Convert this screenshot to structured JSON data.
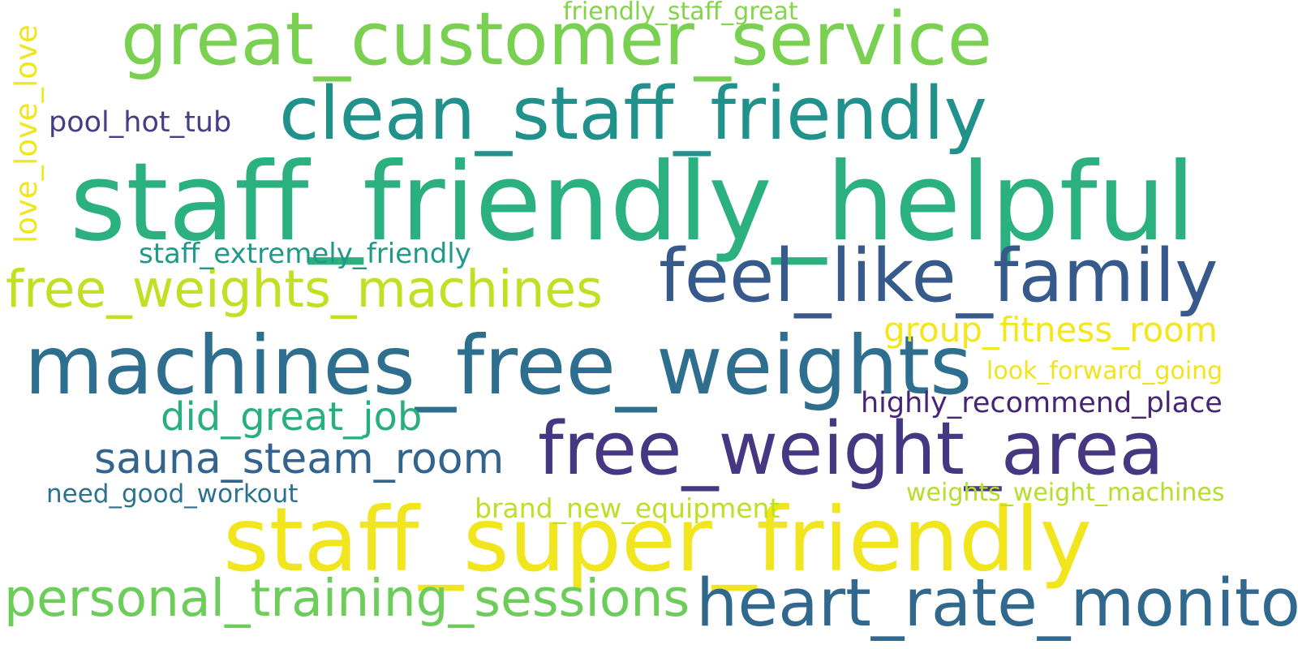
{
  "words": [
    {
      "text": "staff_friendly_helpful",
      "color": "#2bb07f"
    },
    {
      "text": "staff_super_friendly",
      "color": "#f1e51d"
    },
    {
      "text": "machines_free_weights",
      "color": "#2e6e8e"
    },
    {
      "text": "great_customer_service",
      "color": "#7ad151"
    },
    {
      "text": "clean_staff_friendly",
      "color": "#21918c"
    },
    {
      "text": "feel_like_family",
      "color": "#375a8c"
    },
    {
      "text": "free_weight_area",
      "color": "#453781"
    },
    {
      "text": "heart_rate_monitor",
      "color": "#31688e"
    },
    {
      "text": "personal_training_sessions",
      "color": "#6ccd5a"
    },
    {
      "text": "free_weights_machines",
      "color": "#c2df23"
    },
    {
      "text": "sauna_steam_room",
      "color": "#32648e"
    },
    {
      "text": "did_great_job",
      "color": "#29af7f"
    },
    {
      "text": "group_fitness_room",
      "color": "#f4e61e"
    },
    {
      "text": "highly_recommend_place",
      "color": "#482475"
    },
    {
      "text": "pool_hot_tub",
      "color": "#433e85"
    },
    {
      "text": "staff_extremely_friendly",
      "color": "#1f9a8a"
    },
    {
      "text": "look_forward_going",
      "color": "#f0e51c"
    },
    {
      "text": "weights_weight_machines",
      "color": "#b5de2b"
    },
    {
      "text": "need_good_workout",
      "color": "#2c728e"
    },
    {
      "text": "brand_new_equipment",
      "color": "#bddf26"
    },
    {
      "text": "friendly_staff_great",
      "color": "#84d44b"
    },
    {
      "text": "love_love_love",
      "color": "#f1e51d"
    }
  ]
}
